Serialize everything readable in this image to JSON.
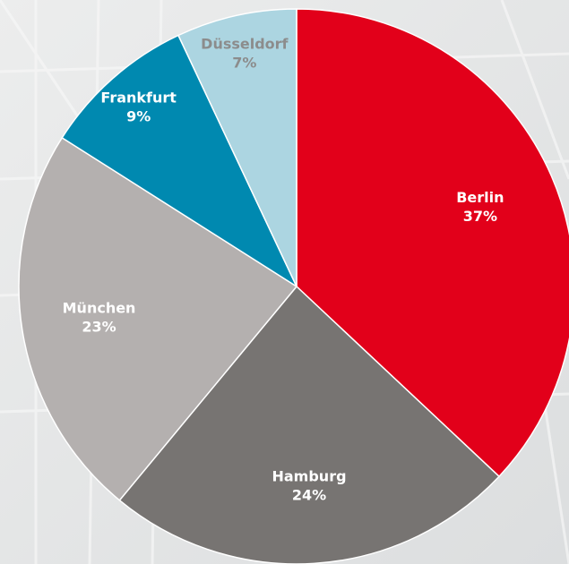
{
  "chart_data": {
    "type": "pie",
    "categories": [
      "Berlin",
      "Hamburg",
      "München",
      "Frankfurt",
      "Düsseldorf"
    ],
    "values": [
      37,
      24,
      23,
      9,
      7
    ],
    "value_labels": [
      "37%",
      "24%",
      "23%",
      "9%",
      "7%"
    ],
    "colors": [
      "#e2001a",
      "#777472",
      "#b4b0af",
      "#0089b0",
      "#acd5e1"
    ],
    "label_colors": [
      "#ffffff",
      "#ffffff",
      "#ffffff",
      "#ffffff",
      "#8c8c8c"
    ]
  }
}
